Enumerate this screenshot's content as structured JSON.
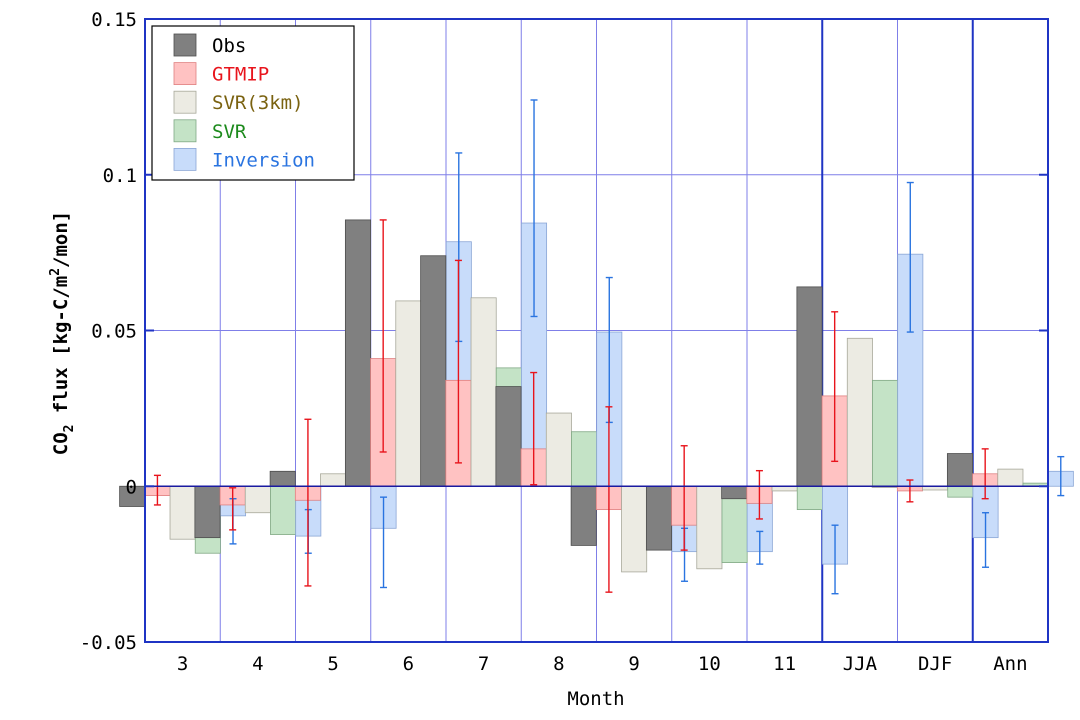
{
  "chart_data": {
    "type": "bar",
    "xlabel": "Month",
    "ylabel_parts": [
      "CO",
      "2",
      " flux [kg-C/m",
      "2",
      "/mon]"
    ],
    "ylim": [
      -0.05,
      0.15
    ],
    "yticks": [
      -0.05,
      0,
      0.05,
      0.1,
      0.15
    ],
    "ytick_labels": [
      "-0.05",
      "0",
      "0.05",
      "0.1",
      "0.15"
    ],
    "grid": true,
    "legend_position": "top-left",
    "categories": [
      "3",
      "4",
      "5",
      "6",
      "7",
      "8",
      "9",
      "10",
      "11",
      "JJA",
      "DJF",
      "Ann"
    ],
    "group_separators_after": [
      "11",
      "DJF"
    ],
    "series": [
      {
        "name": "Obs",
        "fill": "#808080",
        "stroke": "#4d4d4d",
        "label_color": "#000000",
        "values": [
          -0.0065,
          -0.0165,
          0.0048,
          0.0855,
          0.074,
          0.032,
          -0.019,
          -0.0205,
          -0.004,
          0.064,
          0.0,
          0.0105
        ]
      },
      {
        "name": "GTMIP",
        "fill": "#ffc2c2",
        "stroke": "#e08080",
        "label_color": "#e8141c",
        "error_color": "#e8141c",
        "values": [
          -0.003,
          -0.006,
          -0.0045,
          0.041,
          0.034,
          0.012,
          -0.0075,
          -0.0125,
          -0.0055,
          0.029,
          -0.0015,
          0.004
        ],
        "error_high": [
          0.0035,
          -0.0005,
          0.0215,
          0.0855,
          0.0725,
          0.0365,
          0.0255,
          0.013,
          0.005,
          0.056,
          0.002,
          0.012
        ],
        "error_low": [
          -0.006,
          -0.014,
          -0.032,
          0.011,
          0.0075,
          0.0005,
          -0.034,
          -0.0205,
          -0.0105,
          0.008,
          -0.005,
          -0.004
        ]
      },
      {
        "name": "SVR(3km)",
        "fill": "#ecebe3",
        "stroke": "#a8a89a",
        "label_color": "#7a6210",
        "values": [
          -0.017,
          -0.0085,
          0.004,
          0.0595,
          0.0605,
          0.0235,
          -0.0275,
          -0.0265,
          -0.0015,
          0.0475,
          -0.0012,
          0.0055
        ]
      },
      {
        "name": "SVR",
        "fill": "#c4e3c6",
        "stroke": "#80a884",
        "label_color": "#1c8a1c",
        "values": [
          -0.0215,
          -0.0155,
          0.0005,
          0.0455,
          0.038,
          0.0175,
          -0.015,
          -0.0245,
          -0.0075,
          0.034,
          -0.0035,
          0.001
        ]
      },
      {
        "name": "Inversion",
        "fill": "#c8dcfa",
        "stroke": "#8aa6d6",
        "label_color": "#2a74e0",
        "error_color": "#2a74e0",
        "values": [
          -0.0095,
          -0.016,
          -0.0135,
          0.0785,
          0.0845,
          0.0495,
          -0.021,
          -0.021,
          -0.025,
          0.0745,
          -0.0165,
          0.0048
        ],
        "error_high": [
          -0.004,
          -0.0075,
          -0.0035,
          0.107,
          0.124,
          0.067,
          -0.0135,
          -0.0145,
          -0.0125,
          0.0975,
          -0.0085,
          0.0095
        ],
        "error_low": [
          -0.0185,
          -0.0215,
          -0.0325,
          0.0465,
          0.0545,
          0.0205,
          -0.0305,
          -0.025,
          -0.0345,
          0.0495,
          -0.026,
          -0.003
        ]
      }
    ]
  }
}
